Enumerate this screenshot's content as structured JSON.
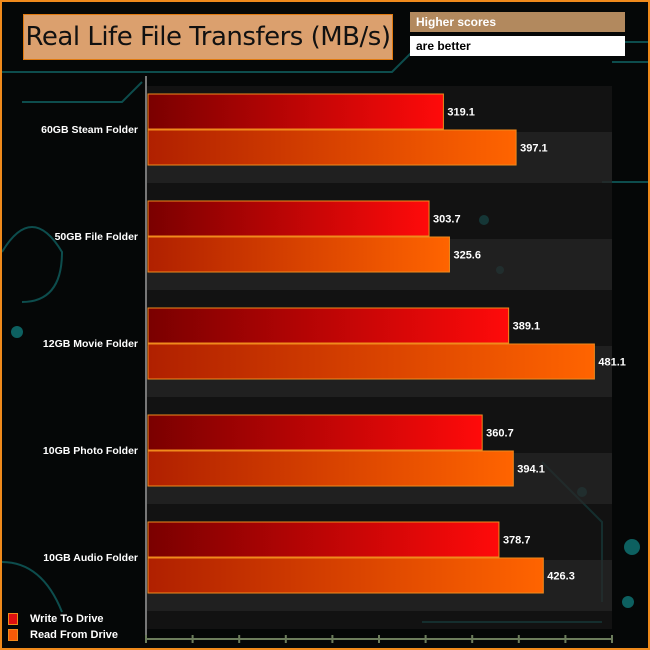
{
  "header": {
    "title": "Real Life File Transfers (MB/s)",
    "note_line1": "Higher scores",
    "note_line2": "are better"
  },
  "chart_data": {
    "type": "bar",
    "orientation": "horizontal",
    "title": "Real Life File Transfers (MB/s)",
    "categories": [
      "60GB Steam Folder",
      "50GB File Folder",
      "12GB Movie Folder",
      "10GB Photo Folder",
      "10GB Audio Folder"
    ],
    "series": [
      {
        "name": "Write To  Drive",
        "values": [
          319.1,
          303.7,
          389.1,
          360.7,
          378.7
        ],
        "color": "#e01010"
      },
      {
        "name": "Read From  Drive",
        "values": [
          397.1,
          325.6,
          481.1,
          394.1,
          426.3
        ],
        "color": "#f55a08"
      }
    ],
    "xlim": [
      0,
      500
    ],
    "xticks": [
      0,
      50,
      100,
      150,
      200,
      250,
      300,
      350,
      400,
      450,
      500
    ],
    "legend_position": "bottom-left",
    "grid": false
  }
}
